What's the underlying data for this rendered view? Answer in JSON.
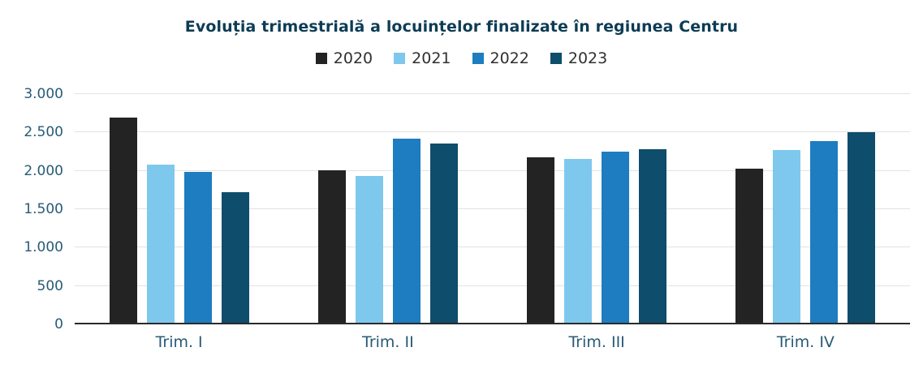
{
  "title": "Evoluția trimestrială a locuințelor finalizate în regiunea Centru",
  "legend": [
    {
      "label": "2020",
      "color": "#232323"
    },
    {
      "label": "2021",
      "color": "#7ec8ee"
    },
    {
      "label": "2022",
      "color": "#1d7dc0"
    },
    {
      "label": "2023",
      "color": "#0e4d6b"
    }
  ],
  "chart_data": {
    "type": "bar",
    "title": "Evoluția trimestrială a locuințelor finalizate în regiunea Centru",
    "categories": [
      "Trim. I",
      "Trim. II",
      "Trim. III",
      "Trim. IV"
    ],
    "series": [
      {
        "name": "2020",
        "color": "#232323",
        "values": [
          2690,
          2010,
          2180,
          2030
        ]
      },
      {
        "name": "2021",
        "color": "#7ec8ee",
        "values": [
          2080,
          1930,
          2160,
          2270
        ]
      },
      {
        "name": "2022",
        "color": "#1d7dc0",
        "values": [
          1990,
          2420,
          2250,
          2390
        ]
      },
      {
        "name": "2023",
        "color": "#0e4d6b",
        "values": [
          1720,
          2360,
          2280,
          2500
        ]
      }
    ],
    "xlabel": "",
    "ylabel": "",
    "ylim": [
      0,
      3000
    ],
    "y_ticks": [
      0,
      500,
      1000,
      1500,
      2000,
      2500,
      3000
    ],
    "y_tick_labels": [
      "0",
      "500",
      "1.000",
      "1.500",
      "2.000",
      "2.500",
      "3.000"
    ],
    "grid": true,
    "legend_position": "top"
  }
}
